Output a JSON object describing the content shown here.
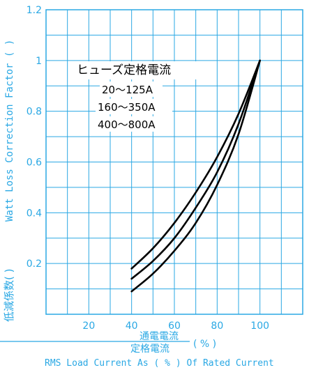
{
  "chart_data": {
    "type": "line",
    "xlim": [
      0,
      120
    ],
    "ylim": [
      0,
      1.2
    ],
    "x_ticks": [
      20,
      40,
      60,
      80,
      100
    ],
    "y_ticks": [
      0.2,
      0.4,
      0.6,
      0.8,
      1,
      1.2
    ],
    "x_tick_labels": [
      "20",
      "40",
      "60",
      "80",
      "100"
    ],
    "y_tick_labels": [
      "0.2",
      "0.4",
      "0.6",
      "0.8",
      "1",
      "1.2"
    ],
    "grid": true,
    "legend": {
      "title": "ヒューズ定格電流",
      "placement": "top-left",
      "entries": [
        "20～125A",
        "160～350A",
        "400～800A"
      ]
    },
    "series": [
      {
        "name": "20～125A",
        "x": [
          40,
          50,
          60,
          70,
          80,
          90,
          100
        ],
        "y": [
          0.18,
          0.26,
          0.36,
          0.48,
          0.62,
          0.79,
          1.0
        ]
      },
      {
        "name": "160～350A",
        "x": [
          40,
          50,
          60,
          70,
          80,
          90,
          100
        ],
        "y": [
          0.14,
          0.21,
          0.3,
          0.42,
          0.56,
          0.75,
          1.0
        ]
      },
      {
        "name": "400～800A",
        "x": [
          40,
          50,
          60,
          70,
          80,
          90,
          100
        ],
        "y": [
          0.09,
          0.16,
          0.25,
          0.36,
          0.51,
          0.71,
          1.0
        ]
      }
    ],
    "xlabel": {
      "numerator": "通電電流",
      "denominator": "定格電流",
      "unit": "( % )",
      "english": "RMS Load Current As ( % ) Of Rated Current"
    },
    "ylabel": {
      "japanese": "低減係数(    )",
      "english": "Watt Loss Correction Factor ( )"
    }
  },
  "colors": {
    "grid": "#2aa8e4",
    "curve": "#000000",
    "text": "#2aa8e4",
    "background": "#ffffff"
  }
}
